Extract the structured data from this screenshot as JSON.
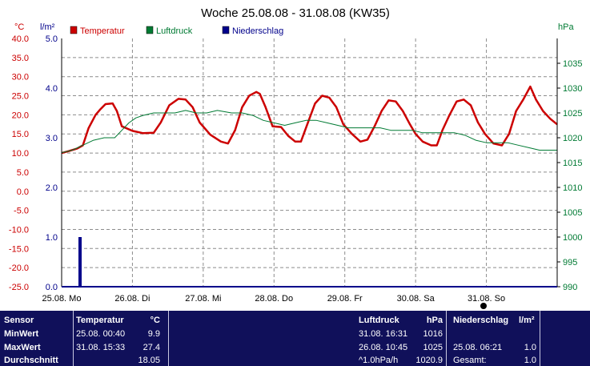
{
  "chart_data": {
    "type": "line",
    "title": "Woche 25.08.08 - 31.08.08 (KW35)",
    "axes": {
      "temperature": {
        "unit": "°C",
        "range": [
          -25,
          40
        ],
        "ticks": [
          "40.0",
          "35.0",
          "30.0",
          "25.0",
          "20.0",
          "15.0",
          "10.0",
          "5.0",
          "0.0",
          "-5.0",
          "-10.0",
          "-15.0",
          "-20.0",
          "-25.0"
        ]
      },
      "rain": {
        "unit": "l/m²",
        "range": [
          0,
          5
        ],
        "ticks": [
          "5.0",
          "4.0",
          "3.0",
          "2.0",
          "1.0",
          "0.0"
        ]
      },
      "pressure": {
        "unit": "hPa",
        "range": [
          990,
          1040
        ],
        "ticks": [
          "1035",
          "1030",
          "1025",
          "1020",
          "1015",
          "1010",
          "1005",
          "1000",
          "995",
          "990"
        ]
      }
    },
    "x_ticks": [
      "25.08.  Mo",
      "26.08.  Di",
      "27.08.  Mi",
      "28.08.  Do",
      "29.08.  Fr",
      "30.08.  Sa",
      "31.08.  So"
    ],
    "x_range_days": [
      0,
      7
    ],
    "grid": true,
    "legend": [
      "Temperatur",
      "Luftdruck",
      "Niederschlag"
    ],
    "colors": {
      "temperature": "#cc0000",
      "pressure": "#007a33",
      "rain": "#00008b",
      "axis_left": "#cc0000",
      "axis_rain": "#00008b",
      "axis_right": "#007a33"
    },
    "series": [
      {
        "name": "Temperatur",
        "axis": "temperature",
        "points": [
          [
            0.0,
            10.0
          ],
          [
            0.1,
            10.5
          ],
          [
            0.22,
            11.2
          ],
          [
            0.3,
            12.0
          ],
          [
            0.38,
            16.5
          ],
          [
            0.48,
            20.0
          ],
          [
            0.55,
            21.5
          ],
          [
            0.62,
            22.8
          ],
          [
            0.72,
            23.0
          ],
          [
            0.78,
            21.0
          ],
          [
            0.85,
            17.0
          ],
          [
            1.0,
            15.8
          ],
          [
            1.15,
            15.2
          ],
          [
            1.3,
            15.3
          ],
          [
            1.4,
            18.0
          ],
          [
            1.52,
            22.5
          ],
          [
            1.65,
            24.2
          ],
          [
            1.75,
            24.0
          ],
          [
            1.85,
            22.0
          ],
          [
            1.95,
            18.0
          ],
          [
            2.1,
            14.8
          ],
          [
            2.25,
            13.0
          ],
          [
            2.35,
            12.5
          ],
          [
            2.45,
            16.0
          ],
          [
            2.55,
            22.0
          ],
          [
            2.65,
            25.0
          ],
          [
            2.75,
            26.0
          ],
          [
            2.8,
            25.5
          ],
          [
            2.88,
            22.0
          ],
          [
            2.98,
            17.0
          ],
          [
            3.1,
            16.8
          ],
          [
            3.2,
            14.5
          ],
          [
            3.3,
            13.0
          ],
          [
            3.38,
            13.0
          ],
          [
            3.48,
            18.0
          ],
          [
            3.58,
            23.0
          ],
          [
            3.68,
            25.0
          ],
          [
            3.78,
            24.5
          ],
          [
            3.88,
            22.0
          ],
          [
            3.98,
            17.5
          ],
          [
            4.1,
            15.0
          ],
          [
            4.22,
            13.0
          ],
          [
            4.32,
            13.5
          ],
          [
            4.42,
            17.0
          ],
          [
            4.52,
            21.0
          ],
          [
            4.62,
            23.8
          ],
          [
            4.72,
            23.5
          ],
          [
            4.82,
            21.0
          ],
          [
            4.92,
            17.5
          ],
          [
            5.0,
            15.0
          ],
          [
            5.1,
            13.0
          ],
          [
            5.22,
            12.0
          ],
          [
            5.3,
            12.0
          ],
          [
            5.38,
            16.0
          ],
          [
            5.48,
            20.0
          ],
          [
            5.58,
            23.5
          ],
          [
            5.68,
            24.0
          ],
          [
            5.78,
            22.5
          ],
          [
            5.88,
            18.0
          ],
          [
            5.98,
            15.0
          ],
          [
            6.1,
            12.5
          ],
          [
            6.22,
            12.0
          ],
          [
            6.32,
            15.0
          ],
          [
            6.42,
            21.0
          ],
          [
            6.52,
            24.0
          ],
          [
            6.62,
            27.4
          ],
          [
            6.7,
            24.0
          ],
          [
            6.8,
            21.0
          ],
          [
            6.9,
            19.0
          ],
          [
            7.0,
            17.5
          ]
        ]
      },
      {
        "name": "Luftdruck",
        "axis": "pressure",
        "points": [
          [
            0.0,
            1017
          ],
          [
            0.15,
            1017.5
          ],
          [
            0.3,
            1018.5
          ],
          [
            0.45,
            1019.5
          ],
          [
            0.6,
            1020
          ],
          [
            0.75,
            1020
          ],
          [
            0.85,
            1021.5
          ],
          [
            0.95,
            1023
          ],
          [
            1.05,
            1024
          ],
          [
            1.15,
            1024.5
          ],
          [
            1.3,
            1025
          ],
          [
            1.45,
            1025
          ],
          [
            1.6,
            1025
          ],
          [
            1.75,
            1025.5
          ],
          [
            1.9,
            1025
          ],
          [
            2.05,
            1025
          ],
          [
            2.2,
            1025.5
          ],
          [
            2.4,
            1025
          ],
          [
            2.55,
            1025
          ],
          [
            2.7,
            1024.5
          ],
          [
            2.85,
            1023.5
          ],
          [
            3.0,
            1023
          ],
          [
            3.15,
            1022.5
          ],
          [
            3.3,
            1023
          ],
          [
            3.45,
            1023.5
          ],
          [
            3.6,
            1023.5
          ],
          [
            3.75,
            1023
          ],
          [
            3.9,
            1022.5
          ],
          [
            4.05,
            1022
          ],
          [
            4.2,
            1022
          ],
          [
            4.35,
            1022
          ],
          [
            4.5,
            1022
          ],
          [
            4.65,
            1021.5
          ],
          [
            4.8,
            1021.5
          ],
          [
            4.95,
            1021.5
          ],
          [
            5.1,
            1021
          ],
          [
            5.25,
            1021
          ],
          [
            5.4,
            1021
          ],
          [
            5.55,
            1021
          ],
          [
            5.7,
            1020.5
          ],
          [
            5.85,
            1019.5
          ],
          [
            6.0,
            1019
          ],
          [
            6.15,
            1019
          ],
          [
            6.3,
            1019
          ],
          [
            6.45,
            1018.5
          ],
          [
            6.6,
            1018
          ],
          [
            6.75,
            1017.5
          ],
          [
            6.9,
            1017.5
          ],
          [
            7.0,
            1017.5
          ]
        ]
      },
      {
        "name": "Niederschlag",
        "axis": "rain",
        "bars": [
          [
            0.26,
            1.0
          ]
        ]
      }
    ]
  },
  "table": {
    "headers": {
      "sensor": "Sensor",
      "temp": "Temperatur",
      "temp_unit": "°C",
      "press": "Luftdruck",
      "press_unit": "hPa",
      "rain": "Niederschlag",
      "rain_unit": "l/m²"
    },
    "rows": [
      {
        "label": "MinWert",
        "temp_time": "25.08.  00:40",
        "temp_val": "9.9",
        "press_time": "31.08.  16:31",
        "press_val": "1016",
        "rain_time": "",
        "rain_val": ""
      },
      {
        "label": "MaxWert",
        "temp_time": "31.08.  15:33",
        "temp_val": "27.4",
        "press_time": "26.08.  10:45",
        "press_val": "1025",
        "rain_time": "25.08.  06:21",
        "rain_val": "1.0"
      },
      {
        "label": "Durchschnitt",
        "temp_time": "",
        "temp_val": "18.05",
        "press_time": "^1.0hPa/h",
        "press_val": "1020.9",
        "rain_time": "Gesamt:",
        "rain_val": "1.0"
      }
    ]
  }
}
